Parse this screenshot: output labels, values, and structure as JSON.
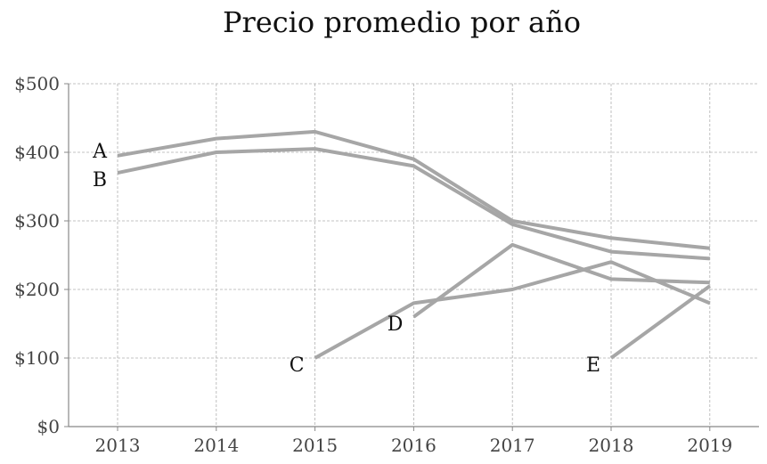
{
  "chart_data": {
    "type": "line",
    "title": "Precio promedio por año",
    "xlabel": "",
    "ylabel": "",
    "categories": [
      "2013",
      "2014",
      "2015",
      "2016",
      "2017",
      "2018",
      "2019"
    ],
    "y_ticks": [
      "$0",
      "$100",
      "$200",
      "$300",
      "$400",
      "$500"
    ],
    "ylim": [
      0,
      500
    ],
    "grid": true,
    "legend": "none",
    "line_color": "#a6a6a6",
    "series": [
      {
        "name": "A",
        "x": [
          "2013",
          "2014",
          "2015",
          "2016",
          "2017",
          "2018",
          "2019"
        ],
        "values": [
          395,
          420,
          430,
          390,
          300,
          275,
          260
        ]
      },
      {
        "name": "B",
        "x": [
          "2013",
          "2014",
          "2015",
          "2016",
          "2017",
          "2018",
          "2019"
        ],
        "values": [
          370,
          400,
          405,
          380,
          295,
          255,
          245
        ]
      },
      {
        "name": "C",
        "x": [
          "2015",
          "2016",
          "2017",
          "2018",
          "2019"
        ],
        "values": [
          100,
          180,
          200,
          240,
          180
        ]
      },
      {
        "name": "D",
        "x": [
          "2016",
          "2017",
          "2018",
          "2019"
        ],
        "values": [
          160,
          265,
          215,
          210
        ]
      },
      {
        "name": "E",
        "x": [
          "2018",
          "2019"
        ],
        "values": [
          100,
          205
        ]
      }
    ]
  }
}
